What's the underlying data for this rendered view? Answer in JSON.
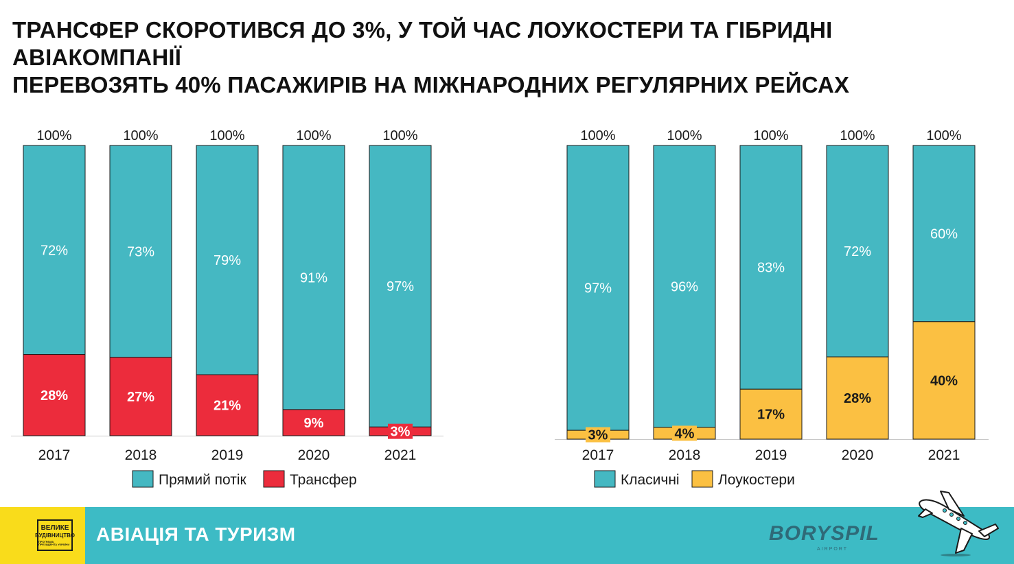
{
  "header": {
    "title_line1": "ТРАНСФЕР СКОРОТИВСЯ ДО 3%, У ТОЙ ЧАС ЛОУКОСТЕРИ ТА ГІБРИДНІ АВІАКОМПАНІЇ",
    "title_line2": "ПЕРЕВОЗЯТЬ 40% ПАСАЖИРІВ НА МІЖНАРОДНИХ РЕГУЛЯРНИХ РЕЙСАХ"
  },
  "chart_data": [
    {
      "type": "bar",
      "stacked": true,
      "categories": [
        "2017",
        "2018",
        "2019",
        "2020",
        "2021"
      ],
      "totals_label": "100%",
      "series": [
        {
          "name": "Прямий потік",
          "values": [
            72,
            73,
            79,
            91,
            97
          ],
          "labels": [
            "72%",
            "73%",
            "79%",
            "91%",
            "97%"
          ],
          "color": "#45b8c2"
        },
        {
          "name": "Трансфер",
          "values": [
            28,
            27,
            21,
            9,
            3
          ],
          "labels": [
            "28%",
            "27%",
            "21%",
            "9%",
            "3%"
          ],
          "color": "#ec2c3c"
        }
      ],
      "ylim": [
        0,
        100
      ],
      "legend": "bottom"
    },
    {
      "type": "bar",
      "stacked": true,
      "categories": [
        "2017",
        "2018",
        "2019",
        "2020",
        "2021"
      ],
      "totals_label": "100%",
      "series": [
        {
          "name": "Класичні",
          "values": [
            97,
            96,
            83,
            72,
            60
          ],
          "labels": [
            "97%",
            "96%",
            "83%",
            "72%",
            "60%"
          ],
          "color": "#45b8c2"
        },
        {
          "name": "Лоукостери",
          "values": [
            3,
            4,
            17,
            28,
            40
          ],
          "labels": [
            "3%",
            "4%",
            "17%",
            "28%",
            "40%"
          ],
          "color": "#fbc042"
        }
      ],
      "ylim": [
        0,
        100
      ],
      "legend": "bottom"
    }
  ],
  "footer": {
    "section_label": "АВІАЦІЯ ТА ТУРИЗМ",
    "logo_line1": "ВЕЛИКЕ",
    "logo_line2": "БУДІВНИЦТВО",
    "logo_line3": "ПРОГРАМА ПРЕЗИДЕНТА УКРАЇНИ",
    "airport_name": "BORYSPIL",
    "airport_sub": "AIRPORT"
  },
  "colors": {
    "teal": "#45b8c2",
    "red": "#ec2c3c",
    "yellow": "#fbc042",
    "footer_bg": "#3dbbc5",
    "footer_logo_bg": "#f9dc1b"
  }
}
